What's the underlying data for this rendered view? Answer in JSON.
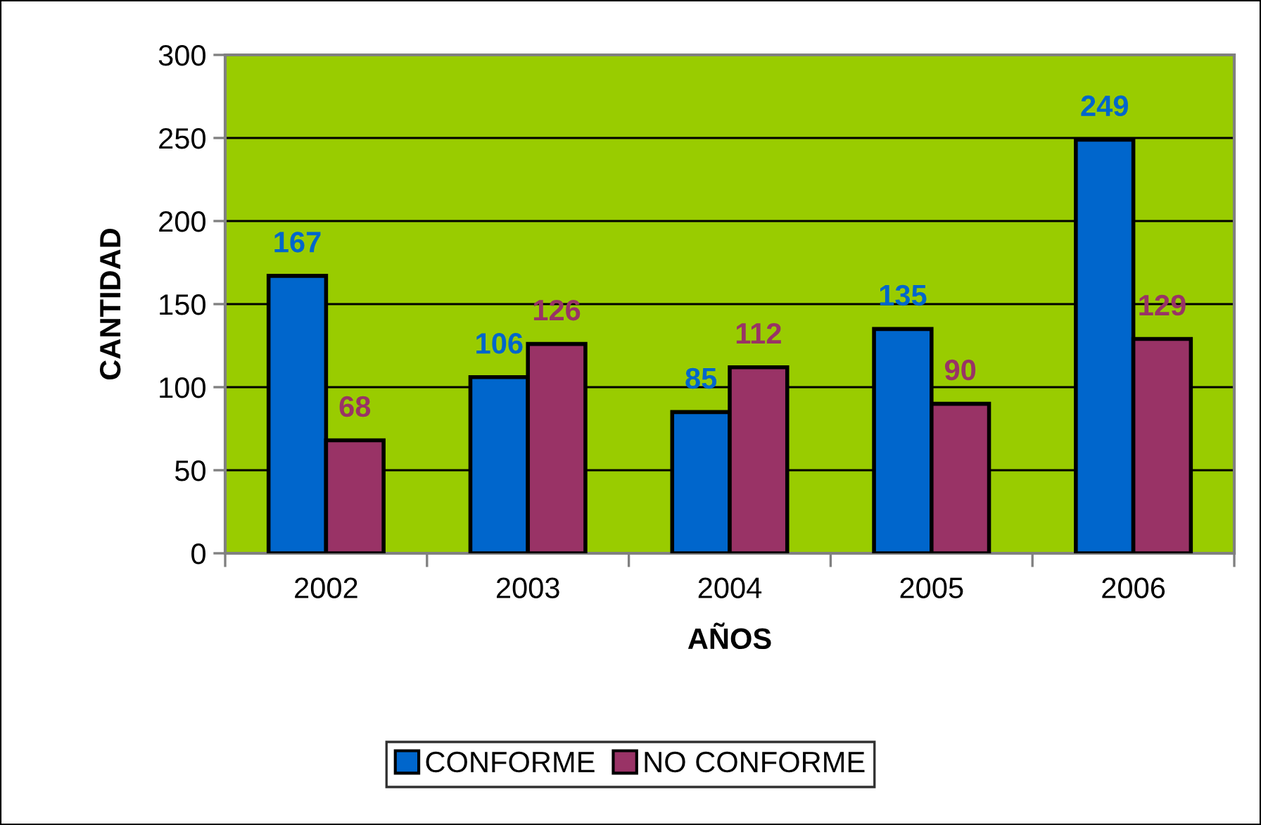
{
  "chart_data": {
    "type": "bar",
    "categories": [
      "2002",
      "2003",
      "2004",
      "2005",
      "2006"
    ],
    "series": [
      {
        "name": "CONFORME",
        "color": "#0066cc",
        "values": [
          167,
          106,
          85,
          135,
          249
        ]
      },
      {
        "name": "NO CONFORME",
        "color": "#993366",
        "values": [
          68,
          126,
          112,
          90,
          129
        ]
      }
    ],
    "xlabel": "AÑOS",
    "ylabel": "CANTIDAD",
    "ylim": [
      0,
      300
    ],
    "yticks": [
      0,
      50,
      100,
      150,
      200,
      250,
      300
    ],
    "grid": "y",
    "legend": "bottom",
    "data_labels": true
  }
}
